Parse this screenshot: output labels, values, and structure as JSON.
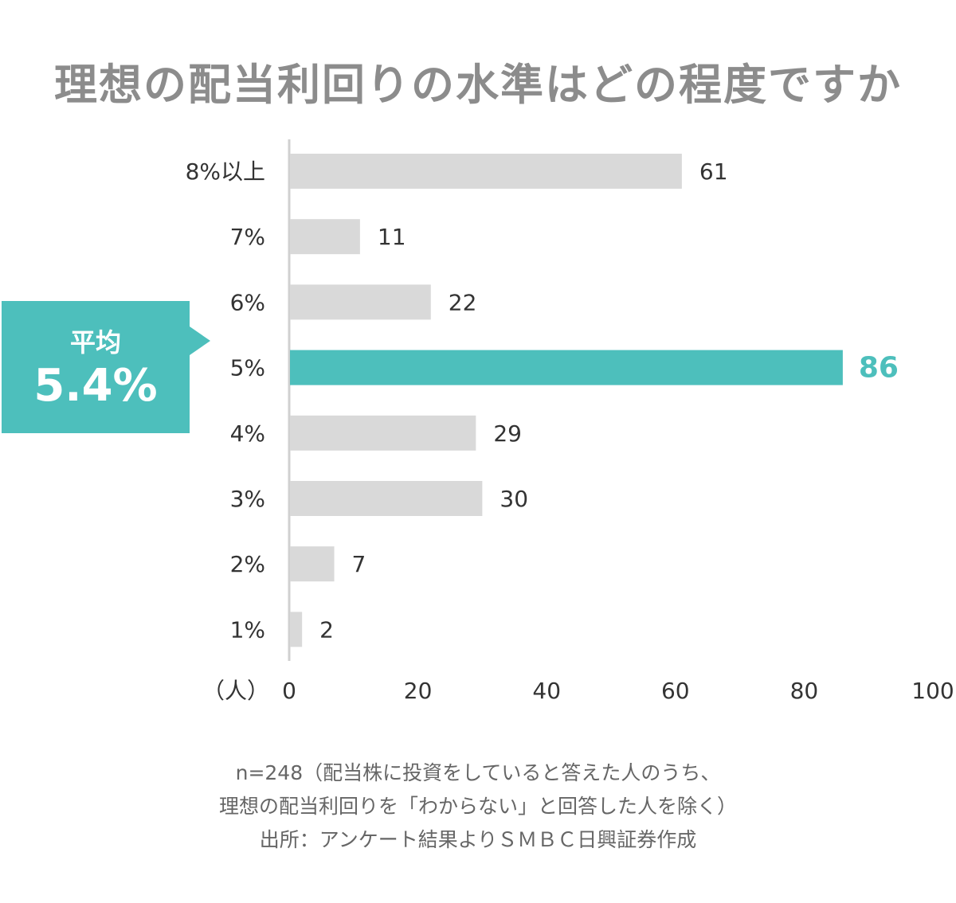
{
  "colors": {
    "title": "#8c8c8c",
    "bar_default": "#d9d9d9",
    "bar_highlight": "#4dbfbc",
    "axis": "#d0d0d0",
    "text": "#333333",
    "callout_bg": "#4dbfbc"
  },
  "callout": {
    "label": "平均",
    "value": "5.4%"
  },
  "chart_data": {
    "type": "bar",
    "orientation": "horizontal",
    "title": "理想の配当利回りの水準はどの程度ですか",
    "categories": [
      "8%以上",
      "7%",
      "6%",
      "5%",
      "4%",
      "3%",
      "2%",
      "1%"
    ],
    "values": [
      61,
      11,
      22,
      86,
      29,
      30,
      7,
      2
    ],
    "highlight_index": 3,
    "xlabel": "（人）",
    "xlim": [
      0,
      100
    ],
    "xticks": [
      0,
      20,
      40,
      60,
      80,
      100
    ]
  },
  "notes": [
    "n=248（配当株に投資をしていると答えた人のうち、",
    "理想の配当利回りを「わからない」と回答した人を除く）",
    "出所：アンケート結果よりＳＭＢＣ日興証券作成"
  ]
}
